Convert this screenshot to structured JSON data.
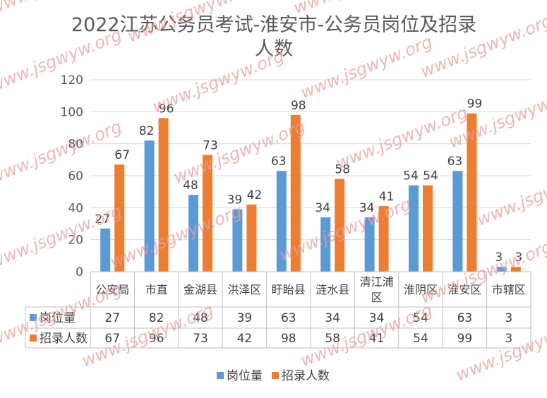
{
  "chart_data": {
    "type": "bar",
    "title_lines": [
      "2022江苏公务员考试-淮安市-公务员岗位及招录",
      "人数"
    ],
    "categories": [
      "公安局",
      "市直",
      "金湖县",
      "洪泽区",
      "盱眙县",
      "涟水县",
      "清江浦区",
      "淮阴区",
      "淮安区",
      "市辖区"
    ],
    "series": [
      {
        "name": "岗位量",
        "color": "#5b9bd5",
        "values": [
          27,
          82,
          48,
          39,
          63,
          34,
          34,
          54,
          63,
          3
        ]
      },
      {
        "name": "招录人数",
        "color": "#ed7d31",
        "values": [
          67,
          96,
          73,
          42,
          98,
          58,
          41,
          54,
          99,
          3
        ]
      }
    ],
    "y_ticks": [
      0,
      20,
      40,
      60,
      80,
      100,
      120
    ],
    "ylim": [
      0,
      120
    ],
    "grid": true,
    "data_table": true,
    "legend": "bottom"
  },
  "watermark": "www.jsgwyw.org"
}
